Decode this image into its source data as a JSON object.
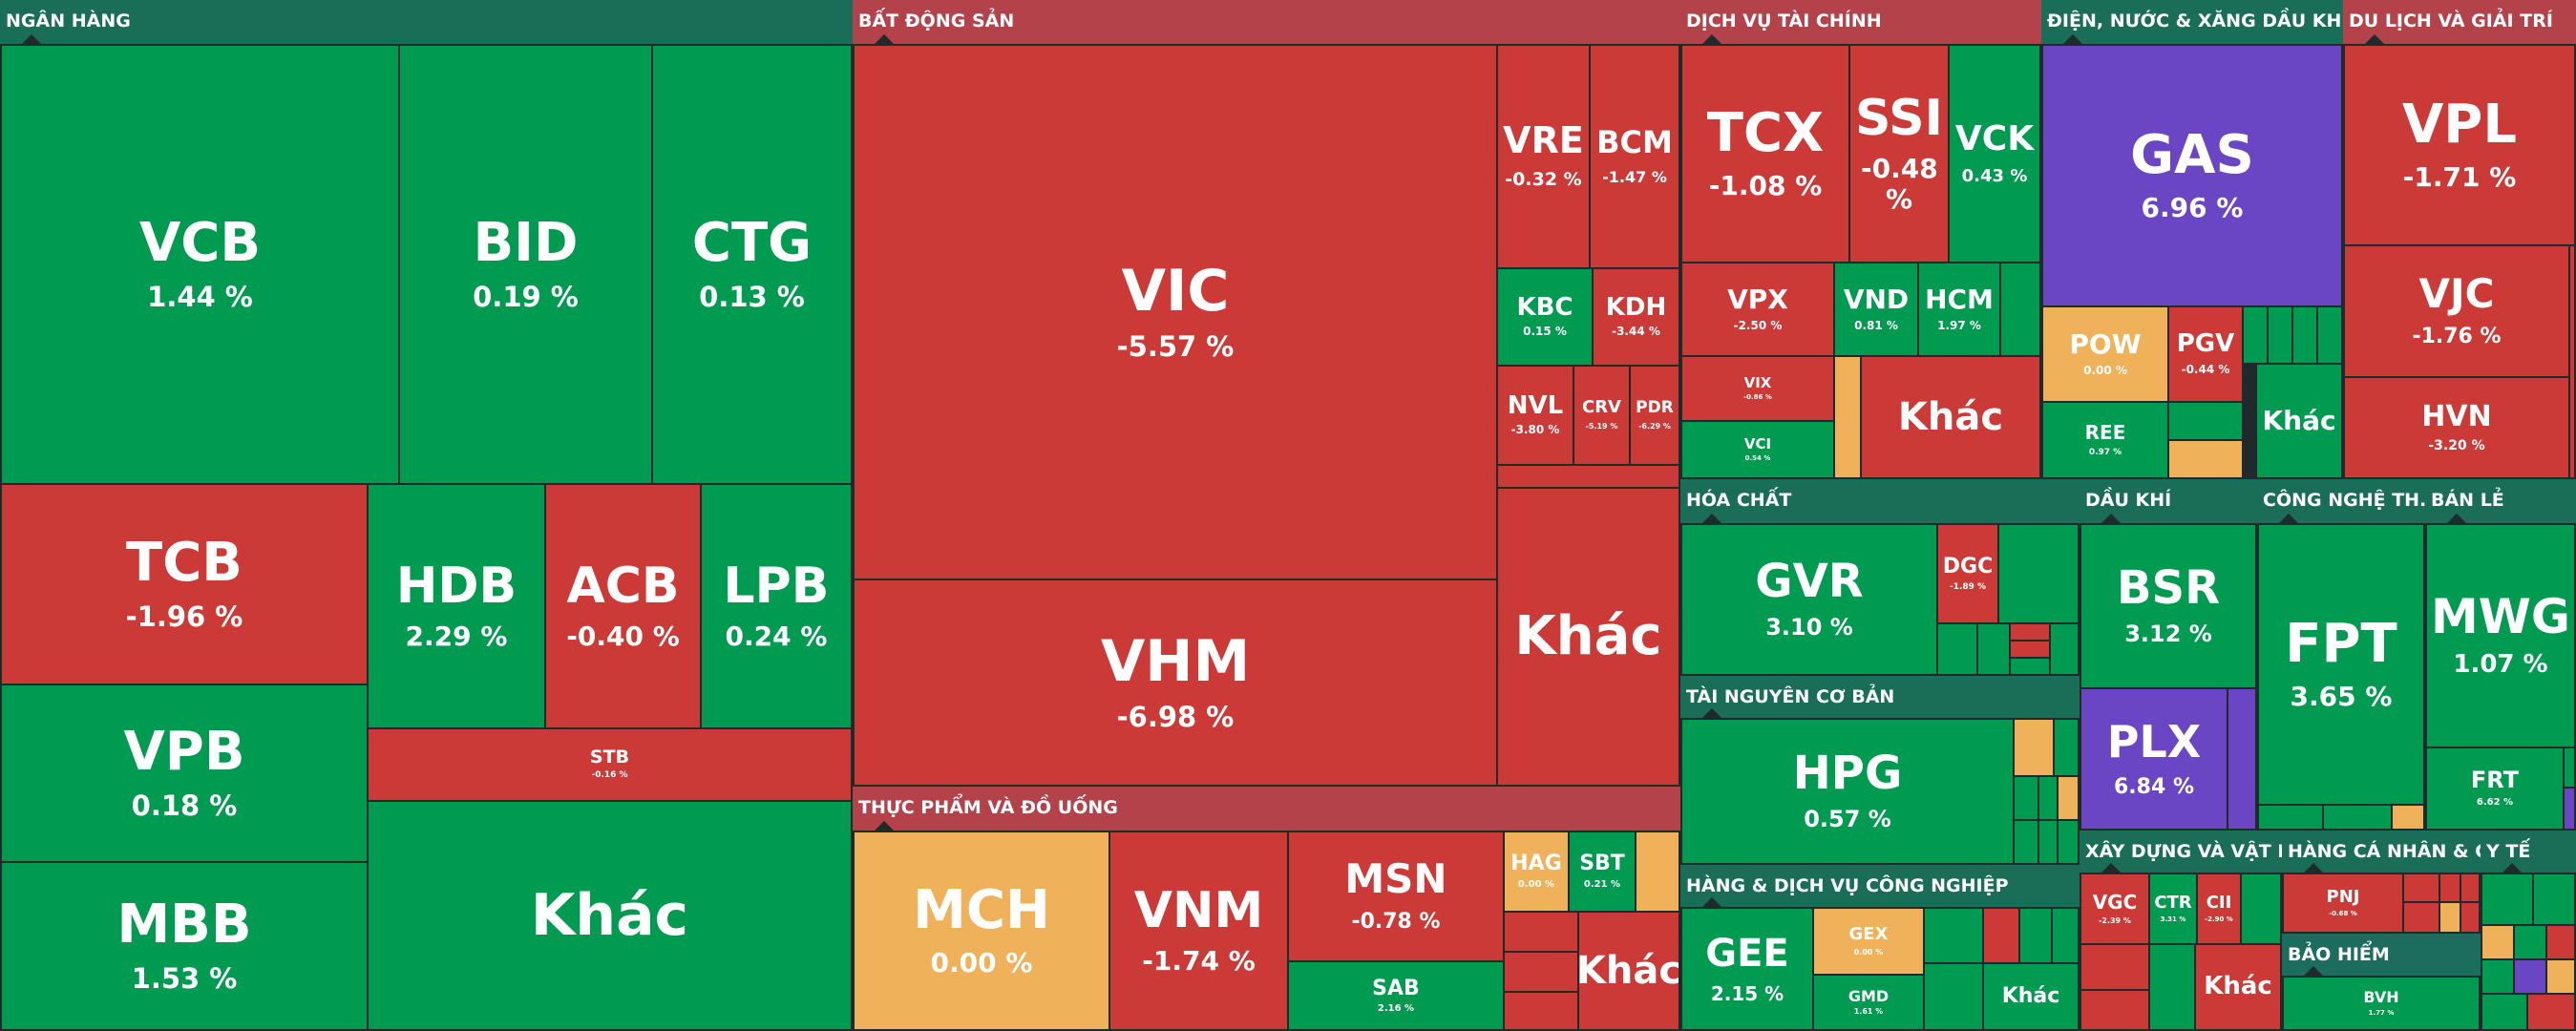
{
  "colors": {
    "up": "#009a50",
    "down": "#cc3a37",
    "flat": "#efb15a",
    "ceiling": "#6a45c4",
    "sector_header": "#1a6e57",
    "sector_header_down": "#b3424a"
  },
  "sectors": {
    "ngan_hang": "NGÂN HÀNG",
    "bat_dong_san": "BẤT ĐỘNG SẢN",
    "dich_vu_tai_chinh": "DỊCH VỤ TÀI CHÍNH",
    "dien_nuoc": "ĐIỆN, NƯỚC & XĂNG DẦU KHÍ ĐỐT",
    "du_lich": "DU LỊCH VÀ GIẢI TRÍ",
    "hoa_chat": "HÓA CHẤT",
    "dau_khi": "DẦU KHÍ",
    "cong_nghe": "CÔNG NGHỆ TH...",
    "ban_le": "BÁN LẺ",
    "tai_nguyen": "TÀI NGUYÊN CƠ BẢN",
    "thuc_pham": "THỰC PHẨM VÀ ĐỒ UỐNG",
    "hang_dv_cn": "HÀNG & DỊCH VỤ CÔNG NGHIỆP",
    "xay_dung": "XÂY DỰNG VÀ VẬT LI...",
    "hang_ca_nhan": "HÀNG CÁ NHÂN & G...",
    "y_te": "Y TẾ",
    "bao_hiem": "BẢO HIỂM"
  },
  "tiles": {
    "VCB": {
      "ticker": "VCB",
      "change": "1.44 %"
    },
    "BID": {
      "ticker": "BID",
      "change": "0.19 %"
    },
    "CTG": {
      "ticker": "CTG",
      "change": "0.13 %"
    },
    "TCB": {
      "ticker": "TCB",
      "change": "-1.96 %"
    },
    "HDB": {
      "ticker": "HDB",
      "change": "2.29 %"
    },
    "ACB": {
      "ticker": "ACB",
      "change": "-0.40 %"
    },
    "LPB": {
      "ticker": "LPB",
      "change": "0.24 %"
    },
    "STB": {
      "ticker": "STB",
      "change": "-0.16 %"
    },
    "VPB": {
      "ticker": "VPB",
      "change": "0.18 %"
    },
    "MBB": {
      "ticker": "MBB",
      "change": "1.53 %"
    },
    "BANK_OTHER": {
      "ticker": "Khác",
      "change": ""
    },
    "VIC": {
      "ticker": "VIC",
      "change": "-5.57 %"
    },
    "VHM": {
      "ticker": "VHM",
      "change": "-6.98 %"
    },
    "VRE": {
      "ticker": "VRE",
      "change": "-0.32 %"
    },
    "BCM": {
      "ticker": "BCM",
      "change": "-1.47 %"
    },
    "KBC": {
      "ticker": "KBC",
      "change": "0.15 %"
    },
    "KDH": {
      "ticker": "KDH",
      "change": "-3.44 %"
    },
    "NVL": {
      "ticker": "NVL",
      "change": "-3.80 %"
    },
    "CRV": {
      "ticker": "CRV",
      "change": "-5.19 %"
    },
    "PDR": {
      "ticker": "PDR",
      "change": "-6.29 %"
    },
    "RE_OTHER": {
      "ticker": "Khác",
      "change": ""
    },
    "TCX": {
      "ticker": "TCX",
      "change": "-1.08 %"
    },
    "SSI": {
      "ticker": "SSI",
      "change": "-0.48 %"
    },
    "VCK": {
      "ticker": "VCK",
      "change": "0.43 %"
    },
    "VPX": {
      "ticker": "VPX",
      "change": "-2.50 %"
    },
    "VND": {
      "ticker": "VND",
      "change": "0.81 %"
    },
    "HCM": {
      "ticker": "HCM",
      "change": "1.97 %"
    },
    "VIX": {
      "ticker": "VIX",
      "change": "-0.86 %"
    },
    "VCI": {
      "ticker": "VCI",
      "change": "0.54 %"
    },
    "FIN_OTHER": {
      "ticker": "Khác",
      "change": ""
    },
    "GAS": {
      "ticker": "GAS",
      "change": "6.96 %"
    },
    "POW": {
      "ticker": "POW",
      "change": "0.00 %"
    },
    "PGV": {
      "ticker": "PGV",
      "change": "-0.44 %"
    },
    "REE": {
      "ticker": "REE",
      "change": "0.97 %"
    },
    "UTIL_OTHER": {
      "ticker": "Khác",
      "change": ""
    },
    "VPL": {
      "ticker": "VPL",
      "change": "-1.71 %"
    },
    "VJC": {
      "ticker": "VJC",
      "change": "-1.76 %"
    },
    "HVN": {
      "ticker": "HVN",
      "change": "-3.20 %"
    },
    "GVR": {
      "ticker": "GVR",
      "change": "3.10 %"
    },
    "DGC": {
      "ticker": "DGC",
      "change": "-1.89 %"
    },
    "BSR": {
      "ticker": "BSR",
      "change": "3.12 %"
    },
    "PLX": {
      "ticker": "PLX",
      "change": "6.84 %"
    },
    "FPT": {
      "ticker": "FPT",
      "change": "3.65 %"
    },
    "MWG": {
      "ticker": "MWG",
      "change": "1.07 %"
    },
    "FRT": {
      "ticker": "FRT",
      "change": "6.62 %"
    },
    "HPG": {
      "ticker": "HPG",
      "change": "0.57 %"
    },
    "MCH": {
      "ticker": "MCH",
      "change": "0.00 %"
    },
    "VNM": {
      "ticker": "VNM",
      "change": "-1.74 %"
    },
    "MSN": {
      "ticker": "MSN",
      "change": "-0.78 %"
    },
    "SAB": {
      "ticker": "SAB",
      "change": "2.16 %"
    },
    "HAG": {
      "ticker": "HAG",
      "change": "0.00 %"
    },
    "SBT": {
      "ticker": "SBT",
      "change": "0.21 %"
    },
    "FOOD_OTHER": {
      "ticker": "Khác",
      "change": ""
    },
    "GEE": {
      "ticker": "GEE",
      "change": "2.15 %"
    },
    "GEX": {
      "ticker": "GEX",
      "change": "0.00 %"
    },
    "GMD": {
      "ticker": "GMD",
      "change": "1.61 %"
    },
    "IND_OTHER": {
      "ticker": "Khác",
      "change": ""
    },
    "VGC": {
      "ticker": "VGC",
      "change": "-2.39 %"
    },
    "CTR": {
      "ticker": "CTR",
      "change": "3.31 %"
    },
    "CII": {
      "ticker": "CII",
      "change": "-2.90 %"
    },
    "CONS_OTHER": {
      "ticker": "Khác",
      "change": ""
    },
    "PNJ": {
      "ticker": "PNJ",
      "change": "-0.68 %"
    },
    "BVH": {
      "ticker": "BVH",
      "change": "1.77 %"
    }
  }
}
